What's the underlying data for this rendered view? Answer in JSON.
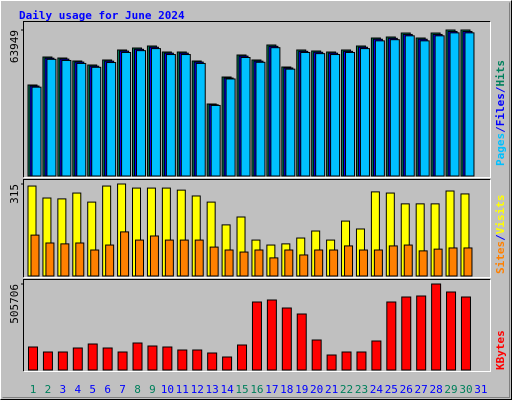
{
  "chart_data": [
    {
      "type": "bar",
      "title": "Daily usage for June 2024",
      "categories": [
        "1",
        "2",
        "3",
        "4",
        "5",
        "6",
        "7",
        "8",
        "9",
        "10",
        "11",
        "12",
        "13",
        "14",
        "15",
        "16",
        "17",
        "18",
        "19",
        "20",
        "21",
        "22",
        "23",
        "24",
        "25",
        "26",
        "27",
        "28",
        "29",
        "30",
        "31"
      ],
      "category_colors": [
        "#00805c",
        "#00805c",
        "#0000ff",
        "#0000ff",
        "#0000ff",
        "#0000ff",
        "#0000ff",
        "#00805c",
        "#00805c",
        "#0000ff",
        "#0000ff",
        "#0000ff",
        "#0000ff",
        "#0000ff",
        "#00805c",
        "#00805c",
        "#0000ff",
        "#0000ff",
        "#0000ff",
        "#0000ff",
        "#0000ff",
        "#00805c",
        "#00805c",
        "#0000ff",
        "#0000ff",
        "#0000ff",
        "#0000ff",
        "#0000ff",
        "#00805c",
        "#00805c",
        "#0000ff"
      ],
      "separator": "/",
      "ylim": [
        0,
        63949
      ],
      "yticks": [
        63949
      ],
      "series": [
        {
          "name": "Hits",
          "color": "#00805c",
          "values": [
            39860,
            52120,
            51680,
            50370,
            48620,
            50810,
            55190,
            56060,
            56940,
            54310,
            54310,
            50370,
            31540,
            43360,
            53000,
            50810,
            57380,
            47740,
            55190,
            54750,
            54310,
            55190,
            56940,
            60440,
            60880,
            62630,
            60440,
            62630,
            63949,
            63949,
            0
          ]
        },
        {
          "name": "Files",
          "color": "#0000ff",
          "values": [
            39400,
            51600,
            51200,
            49900,
            48100,
            50300,
            54700,
            55500,
            56400,
            53800,
            53800,
            49900,
            31200,
            42900,
            52500,
            50300,
            56800,
            47300,
            54600,
            54200,
            53800,
            54600,
            56400,
            59900,
            60300,
            62000,
            59900,
            62000,
            63300,
            63300,
            0
          ]
        },
        {
          "name": "Pages",
          "color": "#00c0ff",
          "values": [
            38900,
            51100,
            50600,
            49300,
            47600,
            49700,
            54100,
            54900,
            55800,
            53200,
            53200,
            49300,
            30900,
            42500,
            51900,
            49800,
            56200,
            46800,
            54100,
            53600,
            53200,
            54100,
            55800,
            59200,
            59700,
            61400,
            59200,
            61400,
            62700,
            62700,
            0
          ]
        }
      ]
    },
    {
      "type": "bar",
      "ylim": [
        0,
        315
      ],
      "yticks": [
        315
      ],
      "series": [
        {
          "name": "Visits",
          "color": "#ffff00",
          "values": [
            308,
            267,
            264,
            284,
            253,
            308,
            315,
            301,
            301,
            301,
            294,
            274,
            253,
            175,
            202,
            123,
            106,
            110,
            130,
            154,
            123,
            188,
            161,
            288,
            284,
            247,
            247,
            247,
            291,
            281,
            0
          ]
        },
        {
          "name": "Sites",
          "color": "#ff8000",
          "values": [
            140,
            113,
            110,
            113,
            89,
            106,
            151,
            123,
            137,
            123,
            123,
            123,
            99,
            89,
            82,
            89,
            62,
            89,
            72,
            89,
            89,
            103,
            89,
            89,
            103,
            106,
            86,
            92,
            96,
            96,
            0
          ]
        }
      ]
    },
    {
      "type": "bar",
      "ylim": [
        0,
        505706
      ],
      "yticks": [
        505706
      ],
      "series": [
        {
          "name": "KBytes",
          "color": "#ff0000",
          "values": [
            135250,
            105850,
            105850,
            129370,
            152890,
            129370,
            105850,
            158770,
            141130,
            135250,
            117610,
            117610,
            99970,
            76440,
            147010,
            399860,
            411620,
            364580,
            329300,
            176410,
            88200,
            105850,
            105850,
            170530,
            399860,
            429260,
            435140,
            505706,
            458660,
            429260,
            0
          ]
        }
      ]
    }
  ]
}
